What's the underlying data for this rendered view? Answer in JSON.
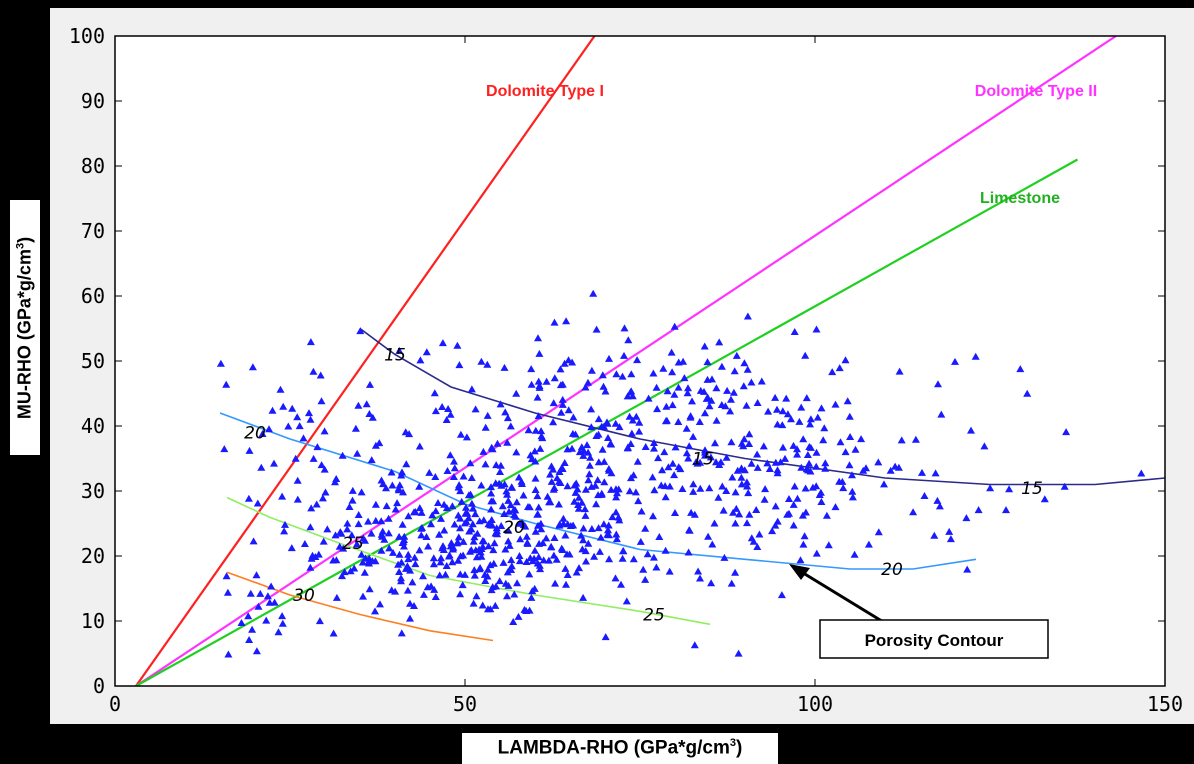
{
  "chart_data": {
    "type": "scatter",
    "xlabel": "LAMBDA-RHO (GPa*g/cm3)",
    "ylabel": "MU-RHO (GPa*g/cm3)",
    "xlim": [
      0,
      150
    ],
    "ylim": [
      0,
      100
    ],
    "xticks": [
      0,
      50,
      100,
      150
    ],
    "yticks": [
      0,
      10,
      20,
      30,
      40,
      50,
      60,
      70,
      80,
      90,
      100
    ],
    "grid": false,
    "trend_lines": [
      {
        "name": "Dolomite Type I",
        "color": "#ff2020",
        "points": [
          [
            3,
            0
          ],
          [
            68.5,
            100
          ]
        ]
      },
      {
        "name": "Dolomite Type II",
        "color": "#ff33ff",
        "points": [
          [
            3,
            0
          ],
          [
            143,
            100
          ]
        ]
      },
      {
        "name": "Limestone",
        "color": "#20d020",
        "points": [
          [
            3,
            0
          ],
          [
            137.5,
            81
          ]
        ]
      }
    ],
    "contours": [
      {
        "label": "15",
        "color": "#2a2a8a",
        "points": [
          [
            35,
            55
          ],
          [
            40,
            51
          ],
          [
            48,
            46
          ],
          [
            60,
            42
          ],
          [
            75,
            38
          ],
          [
            90,
            35
          ],
          [
            110,
            32
          ],
          [
            125,
            31
          ],
          [
            140,
            31
          ],
          [
            150,
            32
          ]
        ],
        "label_positions": [
          [
            40,
            51
          ],
          [
            84,
            35
          ],
          [
            131,
            30.5
          ]
        ]
      },
      {
        "label": "20",
        "color": "#3399ff",
        "points": [
          [
            15,
            42
          ],
          [
            25,
            38
          ],
          [
            40,
            33
          ],
          [
            50,
            28
          ],
          [
            60,
            25
          ],
          [
            75,
            21
          ],
          [
            90,
            19.5
          ],
          [
            105,
            18
          ],
          [
            114,
            18
          ],
          [
            123,
            19.5
          ]
        ],
        "label_positions": [
          [
            20,
            39
          ],
          [
            57,
            24.5
          ],
          [
            111,
            18
          ]
        ]
      },
      {
        "label": "25",
        "color": "#90ee60",
        "points": [
          [
            16,
            29
          ],
          [
            22,
            26
          ],
          [
            32,
            22
          ],
          [
            45,
            17
          ],
          [
            60,
            14
          ],
          [
            75,
            11.5
          ],
          [
            85,
            9.5
          ]
        ],
        "label_positions": [
          [
            34,
            22
          ],
          [
            77,
            11
          ]
        ]
      },
      {
        "label": "30",
        "color": "#ff7f20",
        "points": [
          [
            16,
            17.5
          ],
          [
            25,
            14
          ],
          [
            35,
            11
          ],
          [
            45,
            8.5
          ],
          [
            54,
            7
          ]
        ],
        "label_positions": [
          [
            27,
            14
          ]
        ]
      }
    ],
    "annotations": [
      "Dolomite Type I",
      "Dolomite Type II",
      "Limestone",
      "Porosity Contour"
    ],
    "scatter_clusters": [
      {
        "cx": 50,
        "cy": 22,
        "sx": 12,
        "sy": 6,
        "n": 330
      },
      {
        "cx": 70,
        "cy": 35,
        "sx": 14,
        "sy": 10,
        "n": 380
      },
      {
        "cx": 95,
        "cy": 33,
        "sx": 10,
        "sy": 7,
        "n": 130
      },
      {
        "cx": 28,
        "cy": 40,
        "sx": 8,
        "sy": 8,
        "n": 60
      },
      {
        "cx": 20,
        "cy": 10,
        "sx": 5,
        "sy": 4,
        "n": 30
      },
      {
        "cx": 120,
        "cy": 35,
        "sx": 12,
        "sy": 10,
        "n": 30
      }
    ]
  },
  "labels": {
    "dolomite1": "Dolomite Type I",
    "dolomite2": "Dolomite Type II",
    "limestone": "Limestone",
    "porosity": "Porosity Contour",
    "xlabel_main": "LAMBDA-RHO (GPa*g/cm",
    "ylabel_main": "MU-RHO (GPa*g/cm",
    "unit_exp": "3",
    "close_paren": ")"
  }
}
